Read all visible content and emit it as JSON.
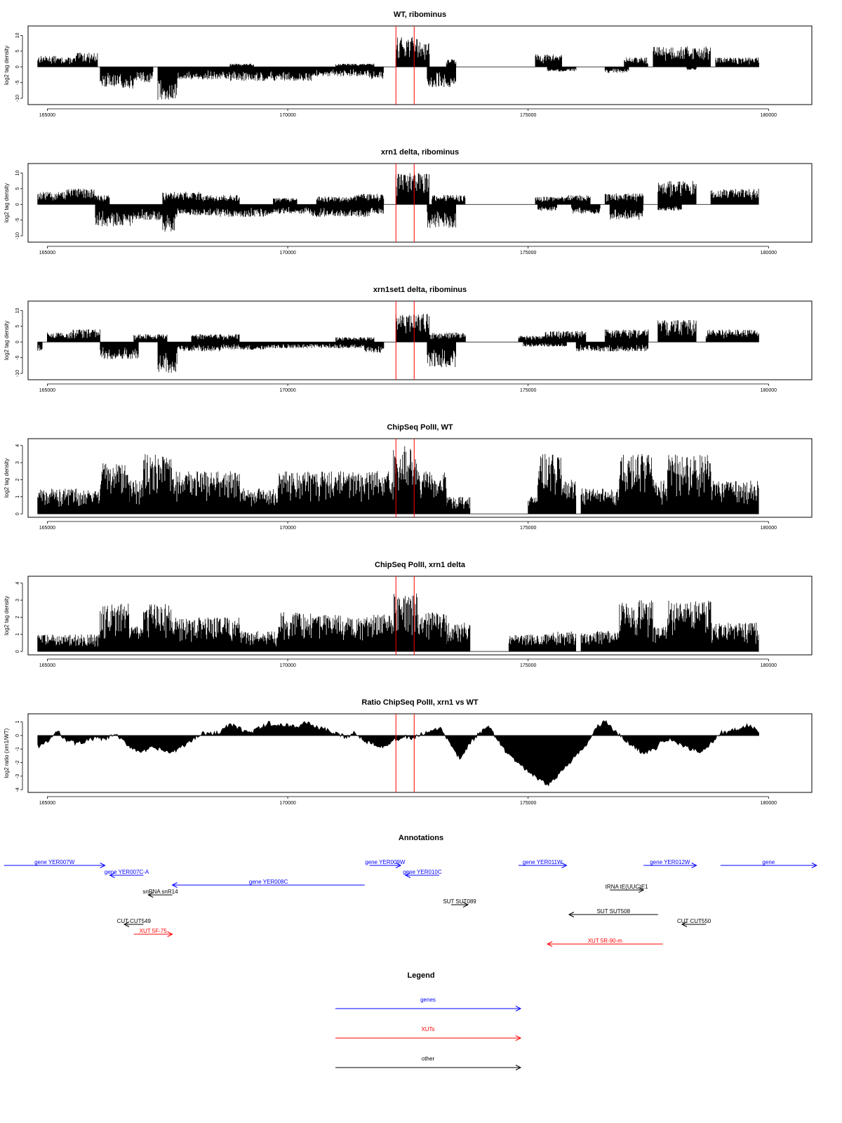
{
  "chart_data": [
    {
      "type": "bar",
      "title": "WT, ribominus",
      "ylabel": "log2 tag density",
      "xlim": [
        164600,
        180900
      ],
      "ylim": [
        -12,
        13
      ],
      "xticks": [
        "165000",
        "170000",
        "175000",
        "180000"
      ],
      "yticks": [
        "-10",
        "-5",
        "0",
        "5",
        "10"
      ],
      "series": [
        {
          "strand": "plus",
          "segments": [
            [
              164800,
              165200,
              3.5
            ],
            [
              165200,
              165600,
              3
            ],
            [
              165600,
              166050,
              4.5
            ],
            [
              168800,
              169300,
              1
            ],
            [
              171000,
              171800,
              1
            ],
            [
              172250,
              172700,
              9.5
            ],
            [
              172700,
              172950,
              8
            ],
            [
              173300,
              173500,
              2.5
            ],
            [
              175150,
              175700,
              4
            ],
            [
              177000,
              177500,
              3
            ],
            [
              177600,
              178800,
              6.5
            ],
            [
              178900,
              179800,
              3
            ]
          ]
        },
        {
          "strand": "minus",
          "segments": [
            [
              166100,
              166800,
              -7
            ],
            [
              166800,
              167200,
              -5
            ],
            [
              167300,
              167700,
              -10.5
            ],
            [
              167700,
              168800,
              -4
            ],
            [
              168800,
              170500,
              -4.5
            ],
            [
              170500,
              171700,
              -3
            ],
            [
              171700,
              172000,
              -4
            ],
            [
              172900,
              173500,
              -6.5
            ],
            [
              175400,
              176000,
              -1.5
            ],
            [
              176600,
              177100,
              -2
            ],
            [
              178300,
              178500,
              -1
            ]
          ]
        }
      ],
      "vlines": [
        172250,
        172630
      ]
    },
    {
      "type": "bar",
      "title": "xrn1 delta, ribominus",
      "ylabel": "log2 tag density",
      "xlim": [
        164600,
        180900
      ],
      "ylim": [
        -12,
        13
      ],
      "xticks": [
        "165000",
        "170000",
        "175000",
        "180000"
      ],
      "yticks": [
        "-10",
        "-5",
        "0",
        "5",
        "10"
      ],
      "series": [
        {
          "strand": "plus",
          "segments": [
            [
              164800,
              165400,
              4
            ],
            [
              165400,
              166000,
              5
            ],
            [
              166000,
              166300,
              3
            ],
            [
              167400,
              168200,
              4
            ],
            [
              168200,
              169000,
              3
            ],
            [
              169700,
              170200,
              2
            ],
            [
              170600,
              171400,
              2.5
            ],
            [
              171400,
              172000,
              3.5
            ],
            [
              172250,
              172950,
              10
            ],
            [
              173000,
              173700,
              3
            ],
            [
              175150,
              175800,
              2.5
            ],
            [
              175800,
              176300,
              3
            ],
            [
              176600,
              177400,
              3.5
            ],
            [
              177700,
              178500,
              7.5
            ],
            [
              178800,
              179800,
              5
            ]
          ]
        },
        {
          "strand": "minus",
          "segments": [
            [
              166000,
              166800,
              -7
            ],
            [
              166800,
              167400,
              -5
            ],
            [
              167400,
              167700,
              -9
            ],
            [
              167700,
              168600,
              -3.5
            ],
            [
              168600,
              169600,
              -4
            ],
            [
              169600,
              170500,
              -3
            ],
            [
              170500,
              171700,
              -4
            ],
            [
              171700,
              172000,
              -3
            ],
            [
              172900,
              173500,
              -7.5
            ],
            [
              175200,
              175600,
              -2
            ],
            [
              175900,
              176500,
              -3
            ],
            [
              176700,
              177400,
              -5
            ],
            [
              177700,
              178200,
              -2
            ]
          ]
        }
      ],
      "vlines": [
        172250,
        172630
      ]
    },
    {
      "type": "bar",
      "title": "xrn1set1 delta, ribominus",
      "ylabel": "log2 tag density",
      "xlim": [
        164600,
        180900
      ],
      "ylim": [
        -12,
        13
      ],
      "xticks": [
        "165000",
        "170000",
        "175000",
        "180000"
      ],
      "yticks": [
        "-10",
        "-5",
        "0",
        "5",
        "10"
      ],
      "series": [
        {
          "strand": "plus",
          "segments": [
            [
              165000,
              165500,
              3
            ],
            [
              165500,
              166100,
              4
            ],
            [
              166800,
              167500,
              2.5
            ],
            [
              168000,
              169000,
              2.5
            ],
            [
              171000,
              171800,
              1.5
            ],
            [
              172250,
              172950,
              9
            ],
            [
              172950,
              173700,
              3
            ],
            [
              174800,
              175300,
              2
            ],
            [
              175300,
              176200,
              3.5
            ],
            [
              176600,
              177500,
              4
            ],
            [
              177700,
              178500,
              7
            ],
            [
              178700,
              179800,
              4
            ]
          ]
        },
        {
          "strand": "minus",
          "segments": [
            [
              164800,
              164900,
              -3
            ],
            [
              166100,
              166900,
              -5.5
            ],
            [
              167300,
              167700,
              -10
            ],
            [
              167700,
              168600,
              -3
            ],
            [
              168600,
              169600,
              -2.5
            ],
            [
              169600,
              171600,
              -2
            ],
            [
              171600,
              172000,
              -3.5
            ],
            [
              172900,
              173500,
              -8
            ],
            [
              174900,
              175800,
              -1.5
            ],
            [
              176000,
              176700,
              -3
            ],
            [
              176700,
              177500,
              -3
            ]
          ]
        }
      ],
      "vlines": [
        172250,
        172630
      ]
    },
    {
      "type": "bar",
      "title": "ChipSeq PolII, WT",
      "ylabel": "log2 tag density",
      "xlim": [
        164600,
        180900
      ],
      "ylim": [
        -0.2,
        4.4
      ],
      "xticks": [
        "165000",
        "170000",
        "175000",
        "180000"
      ],
      "yticks": [
        "0",
        "1",
        "2",
        "3",
        "4"
      ],
      "series": [
        {
          "strand": "plus",
          "segments": [
            [
              164800,
              166100,
              1.5
            ],
            [
              166100,
              166700,
              3
            ],
            [
              166700,
              167000,
              2
            ],
            [
              167000,
              167600,
              3.5
            ],
            [
              167600,
              168200,
              2.5
            ],
            [
              168200,
              169000,
              2.5
            ],
            [
              169000,
              169800,
              1.5
            ],
            [
              169800,
              170500,
              2.5
            ],
            [
              170500,
              171100,
              2.5
            ],
            [
              171100,
              171700,
              2.5
            ],
            [
              171700,
              172200,
              2.5
            ],
            [
              172200,
              172700,
              4
            ],
            [
              172700,
              173300,
              2.5
            ],
            [
              173300,
              173800,
              1
            ],
            [
              175000,
              175200,
              1
            ],
            [
              175200,
              175700,
              3.5
            ],
            [
              175700,
              176000,
              2
            ],
            [
              176100,
              176900,
              1.5
            ],
            [
              176900,
              177600,
              3.5
            ],
            [
              177600,
              177900,
              2
            ],
            [
              177900,
              178800,
              3.5
            ],
            [
              178800,
              179800,
              2
            ]
          ]
        }
      ],
      "vlines": [
        172250,
        172630
      ]
    },
    {
      "type": "bar",
      "title": "ChipSeq PolII, xrn1 delta",
      "ylabel": "log2 tag density",
      "xlim": [
        164600,
        180900
      ],
      "ylim": [
        -0.2,
        4.4
      ],
      "xticks": [
        "165000",
        "170000",
        "175000",
        "180000"
      ],
      "yticks": [
        "0",
        "1",
        "2",
        "3",
        "4"
      ],
      "series": [
        {
          "strand": "plus",
          "segments": [
            [
              164800,
              166100,
              1
            ],
            [
              166100,
              166700,
              2.8
            ],
            [
              166700,
              167000,
              1.5
            ],
            [
              167000,
              167600,
              2.8
            ],
            [
              167600,
              168200,
              2
            ],
            [
              168200,
              169000,
              2
            ],
            [
              169000,
              169800,
              1.2
            ],
            [
              169800,
              170500,
              2.3
            ],
            [
              170500,
              171100,
              2.2
            ],
            [
              171100,
              171700,
              2
            ],
            [
              171700,
              172200,
              2.2
            ],
            [
              172200,
              172700,
              3.4
            ],
            [
              172700,
              173300,
              2.3
            ],
            [
              173300,
              173800,
              1.7
            ],
            [
              174600,
              175500,
              1
            ],
            [
              175500,
              176000,
              1.2
            ],
            [
              176100,
              176900,
              1.2
            ],
            [
              176900,
              177600,
              3
            ],
            [
              177600,
              177900,
              1.5
            ],
            [
              177900,
              178800,
              3
            ],
            [
              178800,
              179800,
              1.7
            ]
          ]
        }
      ],
      "vlines": [
        172250,
        172630
      ]
    },
    {
      "type": "area",
      "title": "Ratio ChipSeq PolII, xrn1 vs WT",
      "ylabel": "log2 ratio (xrn1/WT)",
      "xlim": [
        164600,
        180900
      ],
      "ylim": [
        -4.2,
        1.6
      ],
      "xticks": [
        "165000",
        "170000",
        "175000",
        "180000"
      ],
      "yticks": [
        "-4",
        "-3",
        "-2",
        "-1",
        "0",
        "1"
      ],
      "x": [
        164800,
        165000,
        165200,
        165400,
        165600,
        165800,
        166000,
        166200,
        166400,
        166600,
        166800,
        167000,
        167200,
        167400,
        167600,
        167800,
        168000,
        168200,
        168400,
        168600,
        168800,
        169000,
        169200,
        169400,
        169600,
        169800,
        170000,
        170200,
        170400,
        170600,
        170800,
        171000,
        171200,
        171400,
        171600,
        171800,
        172000,
        172200,
        172400,
        172600,
        172800,
        173000,
        173200,
        173400,
        173600,
        173800,
        174000,
        174200,
        174400,
        174600,
        174800,
        175000,
        175200,
        175400,
        175600,
        175800,
        176000,
        176200,
        176400,
        176600,
        176800,
        177000,
        177200,
        177400,
        177600,
        177800,
        178000,
        178200,
        178400,
        178600,
        178800,
        179000,
        179200,
        179400,
        179600,
        179800
      ],
      "values": [
        -0.8,
        -0.5,
        0.3,
        -0.3,
        -0.6,
        -0.4,
        -0.2,
        -0.3,
        0.1,
        -0.5,
        -1.0,
        -1.2,
        -0.9,
        -1.1,
        -1.3,
        -0.8,
        -0.4,
        0.2,
        0.1,
        0.3,
        0.8,
        0.5,
        0.2,
        0.5,
        0.9,
        0.7,
        0.8,
        0.6,
        1.0,
        0.6,
        0.4,
        0.1,
        -0.1,
        0.2,
        -0.4,
        -0.6,
        -0.8,
        -0.4,
        -0.1,
        -0.2,
        0.1,
        0.3,
        0.5,
        -0.8,
        -1.8,
        -0.5,
        0.2,
        0.6,
        -0.5,
        -1.5,
        -2.0,
        -2.7,
        -3.2,
        -3.7,
        -3.0,
        -2.2,
        -1.5,
        -0.8,
        0.5,
        1.1,
        0.3,
        -0.3,
        -0.8,
        -1.3,
        -1.1,
        -0.4,
        -0.3,
        -0.8,
        -1.0,
        -1.2,
        -0.6,
        0.2,
        0.3,
        0.5,
        0.8,
        0.2
      ],
      "vlines": [
        172250,
        172630
      ]
    }
  ],
  "annotations": {
    "title": "Annotations",
    "features": [
      {
        "label": "gene YER007W",
        "color": "#0000ff",
        "row": 0,
        "from": 164100,
        "to": 166200,
        "dir": "right"
      },
      {
        "label": "gene YER007C-A",
        "color": "#0000ff",
        "row": 1,
        "from": 166300,
        "to": 167000,
        "dir": "left"
      },
      {
        "label": "gene YER008C",
        "color": "#0000ff",
        "row": 2,
        "from": 167600,
        "to": 171600,
        "dir": "left"
      },
      {
        "label": "gene YER009W",
        "color": "#0000ff",
        "row": 0,
        "from": 171700,
        "to": 172350,
        "dir": "right"
      },
      {
        "label": "gene YER010C",
        "color": "#0000ff",
        "row": 1,
        "from": 172450,
        "to": 173150,
        "dir": "left"
      },
      {
        "label": "gene YER011W",
        "color": "#0000ff",
        "row": 0,
        "from": 174800,
        "to": 175800,
        "dir": "right"
      },
      {
        "label": "gene YER012W",
        "color": "#0000ff",
        "row": 0,
        "from": 177400,
        "to": 178500,
        "dir": "right"
      },
      {
        "label": "gene",
        "color": "#0000ff",
        "row": 0,
        "from": 179000,
        "to": 181000,
        "dir": "right"
      },
      {
        "label": "snRNA snR14",
        "color": "#000000",
        "row": 3,
        "from": 167100,
        "to": 167600,
        "dir": "left"
      },
      {
        "label": "tRNA tE(UUC)E1",
        "color": "#000000",
        "row": 2.5,
        "from": 176700,
        "to": 177400,
        "dir": "right"
      },
      {
        "label": "SUT SUT089",
        "color": "#000000",
        "row": 4,
        "from": 173400,
        "to": 173750,
        "dir": "right"
      },
      {
        "label": "SUT SUT508",
        "color": "#000000",
        "row": 5,
        "from": 175850,
        "to": 177700,
        "dir": "left"
      },
      {
        "label": "CUT CUT549",
        "color": "#000000",
        "row": 6,
        "from": 166600,
        "to": 167000,
        "dir": "left"
      },
      {
        "label": "CUT CUT550",
        "color": "#000000",
        "row": 6,
        "from": 178200,
        "to": 178700,
        "dir": "left"
      },
      {
        "label": "XUT 5F-75",
        "color": "#ff0000",
        "row": 7,
        "from": 166800,
        "to": 167600,
        "dir": "right"
      },
      {
        "label": "XUT 5R-90-m",
        "color": "#ff0000",
        "row": 8,
        "from": 175400,
        "to": 177800,
        "dir": "left"
      }
    ]
  },
  "legend": {
    "title": "Legend",
    "items": [
      {
        "label": "genes",
        "color": "#0000ff"
      },
      {
        "label": "XUTs",
        "color": "#ff0000"
      },
      {
        "label": "other",
        "color": "#000000"
      }
    ]
  }
}
